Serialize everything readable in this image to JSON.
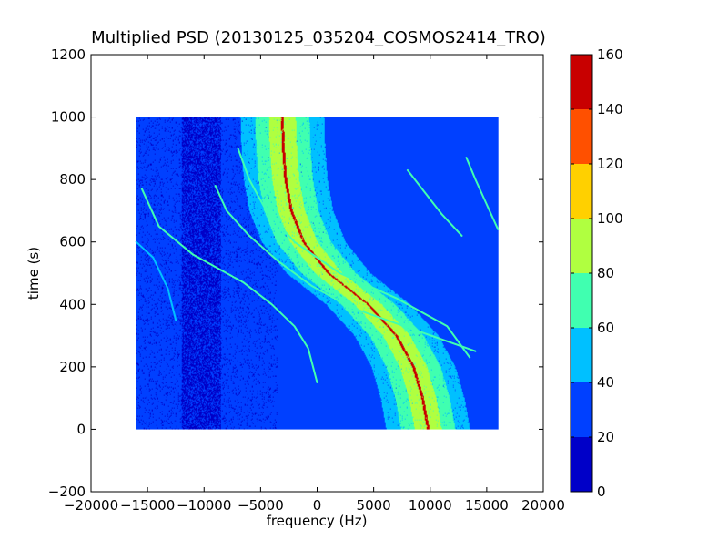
{
  "chart_data": {
    "type": "heatmap",
    "title": "Multiplied PSD (20130125_035204_COSMOS2414_TRO)",
    "xlabel": "frequency (Hz)",
    "ylabel": "time (s)",
    "xlim": [
      -20000,
      20000
    ],
    "ylim": [
      -200,
      1200
    ],
    "xticks": [
      -20000,
      -15000,
      -10000,
      -5000,
      0,
      5000,
      10000,
      15000,
      20000
    ],
    "xtick_labels": [
      "−20000",
      "−15000",
      "−10000",
      "−5000",
      "0",
      "5000",
      "10000",
      "15000",
      "20000"
    ],
    "yticks": [
      -200,
      0,
      200,
      400,
      600,
      800,
      1000,
      1200
    ],
    "ytick_labels": [
      "−200",
      "0",
      "200",
      "400",
      "600",
      "800",
      "1000",
      "1200"
    ],
    "data_extent": {
      "freq": [
        -16000,
        16000
      ],
      "time": [
        0,
        1000
      ]
    },
    "background_level": 30,
    "dark_band": {
      "freq": [
        -12000,
        -8500
      ],
      "level": 10
    },
    "main_trace": {
      "description_values": "center frequency (Hz) of the main Doppler trace at given time (s)",
      "time": [
        0,
        100,
        200,
        300,
        400,
        500,
        600,
        700,
        800,
        900,
        1000
      ],
      "center_freq": [
        9800,
        9300,
        8500,
        7000,
        4500,
        1000,
        -1200,
        -2300,
        -2800,
        -3000,
        -3100
      ],
      "levels": [
        {
          "halfwidth_hz": 3700,
          "level": 50
        },
        {
          "halfwidth_hz": 2400,
          "level": 70
        },
        {
          "halfwidth_hz": 1200,
          "level": 85
        },
        {
          "halfwidth_hz": 120,
          "level": 160
        }
      ]
    },
    "secondary_traces": [
      {
        "time": [
          770,
          650,
          560,
          470,
          400,
          330,
          260,
          150
        ],
        "freq": [
          -15500,
          -14000,
          -11000,
          -6500,
          -4000,
          -2000,
          -800,
          0
        ],
        "level": 60
      },
      {
        "time": [
          780,
          700,
          620,
          540,
          460,
          390,
          320,
          250
        ],
        "freq": [
          -9000,
          -8000,
          -6000,
          -3500,
          -500,
          3000,
          8500,
          14000
        ],
        "level": 60
      },
      {
        "time": [
          900,
          800,
          700,
          600,
          500,
          420,
          330,
          230
        ],
        "freq": [
          -7000,
          -6000,
          -4500,
          -2000,
          2000,
          7000,
          11500,
          13500
        ],
        "level": 60
      },
      {
        "time": [
          830,
          760,
          690,
          620
        ],
        "freq": [
          8000,
          9500,
          11000,
          12800
        ],
        "level": 60
      },
      {
        "time": [
          870,
          800,
          720,
          640
        ],
        "freq": [
          13200,
          14000,
          15000,
          16000
        ],
        "level": 60
      },
      {
        "time": [
          600,
          550,
          450,
          350
        ],
        "freq": [
          -16000,
          -14500,
          -13200,
          -12500
        ],
        "level": 40
      }
    ],
    "colorbar": {
      "min": 0,
      "max": 160,
      "ticks": [
        0,
        20,
        40,
        60,
        80,
        100,
        120,
        140,
        160
      ],
      "tick_labels": [
        "0",
        "20",
        "40",
        "60",
        "80",
        "100",
        "120",
        "140",
        "160"
      ],
      "colors": [
        "#0000c8",
        "#0040ff",
        "#00c0ff",
        "#40ffb0",
        "#b0ff40",
        "#ffd000",
        "#ff5000",
        "#c80000"
      ]
    }
  }
}
